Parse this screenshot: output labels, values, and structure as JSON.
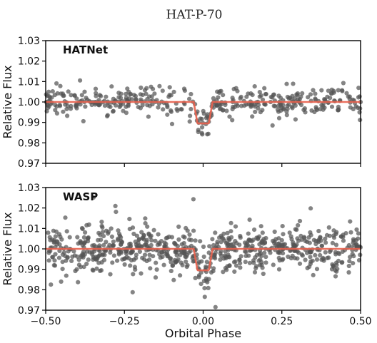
{
  "chart_data": [
    {
      "type": "scatter",
      "title": "HAT-P-70",
      "panel_label": "HATNet",
      "xlabel": "",
      "ylabel": "Relative Flux",
      "xlim": [
        -0.5,
        0.5
      ],
      "ylim": [
        0.97,
        1.03
      ],
      "x_ticks": [
        "",
        "",
        "",
        "",
        ""
      ],
      "y_ticks": [
        "1.03",
        "1.02",
        "1.01",
        "1.00",
        "0.99",
        "0.98",
        "0.97"
      ],
      "grid": false,
      "series": [
        {
          "kind": "points",
          "color": "#555555",
          "count": 420,
          "baseline": 1.0,
          "scatter": 0.0032
        },
        {
          "kind": "model",
          "color": "#e8604c",
          "baseline": 1.0,
          "transit_center": 0.0,
          "transit_depth": 0.0105,
          "transit_duration": 0.06
        }
      ]
    },
    {
      "type": "scatter",
      "panel_label": "WASP",
      "xlabel": "Orbital Phase",
      "ylabel": "Relative Flux",
      "xlim": [
        -0.5,
        0.5
      ],
      "ylim": [
        0.97,
        1.03
      ],
      "x_ticks": [
        "−0.50",
        "−0.25",
        "0.00",
        "0.25",
        "0.50"
      ],
      "y_ticks": [
        "1.03",
        "1.02",
        "1.01",
        "1.00",
        "0.99",
        "0.98",
        "0.97"
      ],
      "grid": false,
      "series": [
        {
          "kind": "points",
          "color": "#555555",
          "count": 750,
          "baseline": 1.0,
          "scatter": 0.0055
        },
        {
          "kind": "model",
          "color": "#e8604c",
          "baseline": 1.0,
          "transit_center": 0.0,
          "transit_depth": 0.0105,
          "transit_duration": 0.06
        }
      ]
    }
  ]
}
